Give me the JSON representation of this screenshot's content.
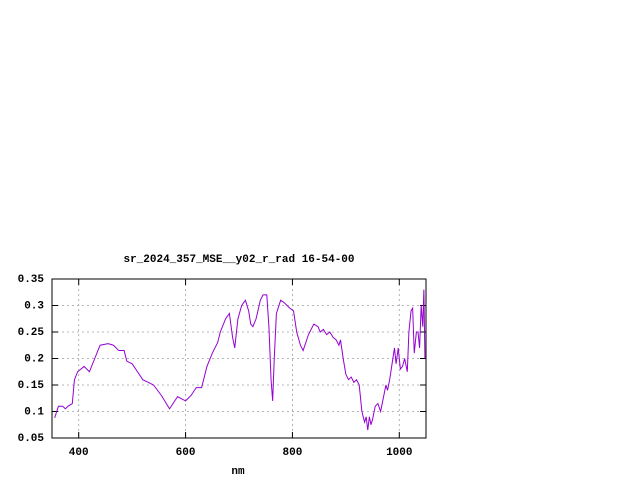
{
  "chart_data": {
    "type": "line",
    "title": "sr_2024_357_MSE__y02_r_rad 16-54-00",
    "x_label": "nm",
    "x": [
      355,
      362,
      370,
      375,
      380,
      388,
      392,
      398,
      410,
      420,
      430,
      440,
      455,
      465,
      475,
      485,
      490,
      500,
      510,
      520,
      530,
      540,
      555,
      570,
      585,
      600,
      610,
      620,
      630,
      640,
      650,
      660,
      665,
      675,
      682,
      688,
      692,
      698,
      705,
      712,
      718,
      722,
      726,
      732,
      740,
      745,
      752,
      756,
      760,
      763,
      766,
      770,
      778,
      785,
      790,
      795,
      802,
      808,
      815,
      820,
      830,
      840,
      848,
      852,
      858,
      864,
      870,
      876,
      882,
      887,
      890,
      895,
      900,
      905,
      910,
      915,
      920,
      925,
      930,
      935,
      938,
      941,
      944,
      947,
      950,
      955,
      960,
      965,
      970,
      975,
      978,
      982,
      988,
      991,
      994,
      998,
      1002,
      1006,
      1010,
      1015,
      1018,
      1022,
      1025,
      1028,
      1032,
      1035,
      1038,
      1041,
      1044,
      1046,
      1048
    ],
    "series": [
      {
        "color": "#9400d3",
        "values": [
          0.088,
          0.11,
          0.11,
          0.105,
          0.11,
          0.115,
          0.16,
          0.175,
          0.185,
          0.175,
          0.2,
          0.225,
          0.228,
          0.225,
          0.215,
          0.215,
          0.195,
          0.19,
          0.175,
          0.16,
          0.155,
          0.15,
          0.13,
          0.105,
          0.128,
          0.12,
          0.13,
          0.145,
          0.145,
          0.185,
          0.21,
          0.23,
          0.25,
          0.275,
          0.285,
          0.24,
          0.22,
          0.275,
          0.3,
          0.31,
          0.29,
          0.265,
          0.26,
          0.275,
          0.31,
          0.32,
          0.32,
          0.26,
          0.16,
          0.12,
          0.2,
          0.285,
          0.31,
          0.305,
          0.3,
          0.295,
          0.29,
          0.25,
          0.225,
          0.215,
          0.245,
          0.265,
          0.26,
          0.25,
          0.255,
          0.245,
          0.25,
          0.24,
          0.235,
          0.225,
          0.235,
          0.2,
          0.17,
          0.16,
          0.165,
          0.155,
          0.16,
          0.15,
          0.1,
          0.08,
          0.09,
          0.065,
          0.09,
          0.075,
          0.085,
          0.11,
          0.115,
          0.1,
          0.125,
          0.15,
          0.14,
          0.16,
          0.2,
          0.22,
          0.19,
          0.22,
          0.18,
          0.185,
          0.2,
          0.175,
          0.25,
          0.29,
          0.295,
          0.21,
          0.25,
          0.25,
          0.22,
          0.3,
          0.26,
          0.33,
          0.2
        ]
      }
    ],
    "xlim": [
      350,
      1050
    ],
    "xticks": [
      400,
      600,
      800,
      1000
    ],
    "ylim": [
      0.05,
      0.35
    ],
    "yticks": [
      0.05,
      0.1,
      0.15,
      0.2,
      0.25,
      0.3,
      0.35
    ],
    "grid": true
  }
}
